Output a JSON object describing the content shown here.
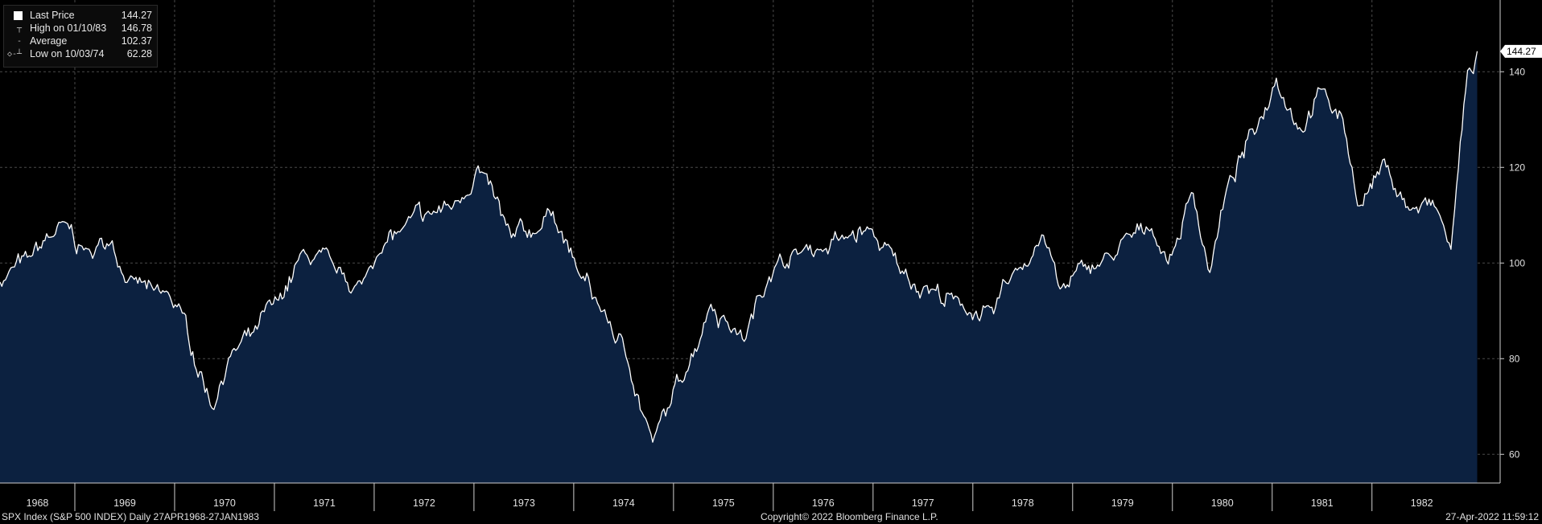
{
  "legend": {
    "last_price_label": "Last Price",
    "last_price_value": "144.27",
    "high_label": "High on 01/10/83",
    "high_value": "146.78",
    "average_label": "Average",
    "average_value": "102.37",
    "low_label": "Low on 10/03/74",
    "low_value": "62.28"
  },
  "footer": {
    "left": "SPX Index (S&P 500 INDEX)  Daily 27APR1968-27JAN1983",
    "center": "Copyright© 2022 Bloomberg Finance L.P.",
    "right": "27-Apr-2022 11:59:12"
  },
  "colors": {
    "background": "#000000",
    "area_fill": "#0c2140",
    "line": "#ffffff",
    "grid": "#4a4a4a"
  },
  "chart_data": {
    "type": "area",
    "series": [
      {
        "name": "Last Price",
        "x": [
          "1968-04",
          "1968-07",
          "1968-11",
          "1969-02",
          "1969-05",
          "1969-07",
          "1969-10",
          "1970-01",
          "1970-05",
          "1970-07",
          "1970-10",
          "1971-01",
          "1971-04",
          "1971-08",
          "1971-11",
          "1972-01",
          "1972-04",
          "1972-07",
          "1972-10",
          "1973-01",
          "1973-05",
          "1973-08",
          "1973-10",
          "1974-01",
          "1974-04",
          "1974-07",
          "1974-10",
          "1974-12",
          "1975-02",
          "1975-05",
          "1975-07",
          "1975-09",
          "1975-12",
          "1976-03",
          "1976-06",
          "1976-09",
          "1976-12",
          "1977-04",
          "1977-07",
          "1977-11",
          "1978-03",
          "1978-05",
          "1978-09",
          "1978-11",
          "1979-02",
          "1979-05",
          "1979-10",
          "1979-12",
          "1980-03",
          "1980-05",
          "1980-07",
          "1980-11",
          "1981-01",
          "1981-04",
          "1981-06",
          "1981-09",
          "1981-11",
          "1982-02",
          "1982-05",
          "1982-08",
          "1982-10",
          "1982-12",
          "1983-01"
        ],
        "values": [
          96,
          101,
          108,
          102,
          105,
          96,
          94,
          91,
          70,
          80,
          85,
          92,
          102,
          98,
          95,
          103,
          107,
          110,
          112,
          120,
          105,
          107,
          111,
          98,
          90,
          80,
          62,
          70,
          78,
          92,
          88,
          84,
          98,
          102,
          103,
          105,
          107,
          98,
          95,
          91,
          89,
          97,
          106,
          94,
          99,
          101,
          108,
          100,
          115,
          98,
          115,
          130,
          139,
          128,
          136,
          130,
          112,
          121,
          111,
          112,
          103,
          140,
          144.27
        ],
        "high": 146.78,
        "average": 102.37,
        "low": 62.28
      }
    ],
    "categories": [
      "1968",
      "1969",
      "1970",
      "1971",
      "1972",
      "1973",
      "1974",
      "1975",
      "1976",
      "1977",
      "1978",
      "1979",
      "1980",
      "1981",
      "1982"
    ],
    "yticks": [
      60,
      80,
      100,
      120,
      140
    ],
    "ylim": [
      54,
      155
    ],
    "last_value_label": "144.27",
    "grid": true
  }
}
